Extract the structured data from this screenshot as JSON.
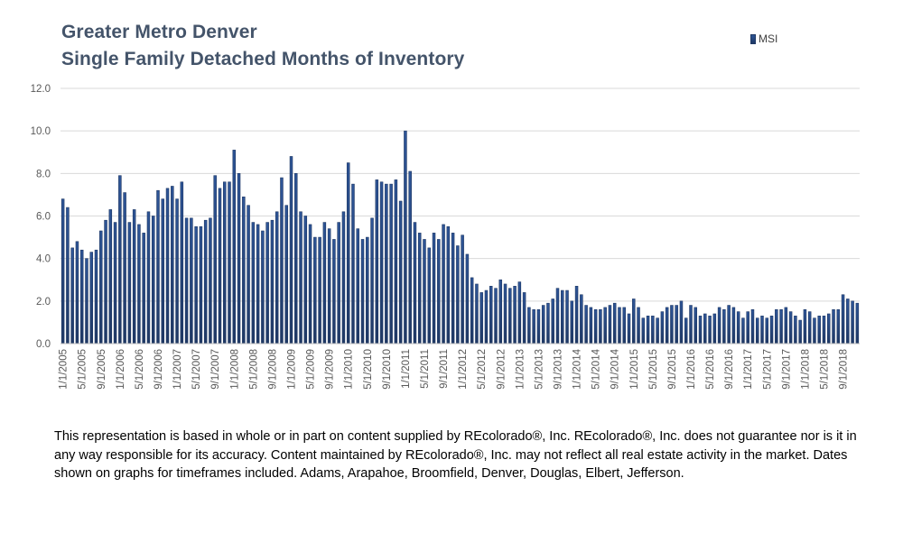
{
  "title_line1": "Greater Metro Denver",
  "title_line2": "Single Family Detached Months of Inventory",
  "legend_label": "MSI",
  "disclaimer": "This representation is based in whole or in part on content supplied by REcolorado®, Inc. REcolorado®, Inc. does not guarantee nor is it in any way responsible for its accuracy. Content maintained by REcolorado®, Inc. may not reflect all real estate activity in the market. Dates shown on graphs for timeframes included.  Adams, Arapahoe, Broomfield, Denver, Douglas, Elbert, Jefferson.",
  "colors": {
    "title": "#44546a",
    "bar_fill_top": "#2e5597",
    "bar_fill_bottom": "#1f3864",
    "bar_stroke": "#1f3864",
    "grid": "#d9d9d9",
    "axis_text": "#595959"
  },
  "chart_data": {
    "type": "bar",
    "series": [
      {
        "name": "MSI"
      }
    ],
    "y_ticks": [
      "0.0",
      "2.0",
      "4.0",
      "6.0",
      "8.0",
      "10.0",
      "12.0"
    ],
    "ylim": [
      0,
      12
    ],
    "grid": true,
    "legend_position": "top-right",
    "x_tick_labels": [
      "1/1/2005",
      "5/1/2005",
      "9/1/2005",
      "1/1/2006",
      "5/1/2006",
      "9/1/2006",
      "1/1/2007",
      "5/1/2007",
      "9/1/2007",
      "1/1/2008",
      "5/1/2008",
      "9/1/2008",
      "1/1/2009",
      "5/1/2009",
      "9/1/2009",
      "1/1/2010",
      "5/1/2010",
      "9/1/2010",
      "1/1/2011",
      "5/1/2011",
      "9/1/2011",
      "1/1/2012",
      "5/1/2012",
      "9/1/2012",
      "1/1/2013",
      "5/1/2013",
      "9/1/2013",
      "1/1/2014",
      "5/1/2014",
      "9/1/2014",
      "1/1/2015",
      "5/1/2015",
      "9/1/2015",
      "1/1/2016",
      "5/1/2016",
      "9/1/2016",
      "1/1/2017",
      "5/1/2017",
      "9/1/2017",
      "1/1/2018",
      "5/1/2018",
      "9/1/2018"
    ],
    "values": [
      6.8,
      6.4,
      4.5,
      4.8,
      4.4,
      4.0,
      4.3,
      4.4,
      5.3,
      5.8,
      6.3,
      5.7,
      7.9,
      7.1,
      5.7,
      6.3,
      5.6,
      5.2,
      6.2,
      6.0,
      7.2,
      6.8,
      7.3,
      7.4,
      6.8,
      7.6,
      5.9,
      5.9,
      5.5,
      5.5,
      5.8,
      5.9,
      7.9,
      7.3,
      7.6,
      7.6,
      9.1,
      8.0,
      6.9,
      6.5,
      5.7,
      5.6,
      5.3,
      5.7,
      5.8,
      6.2,
      7.8,
      6.5,
      8.8,
      8.0,
      6.2,
      6.0,
      5.6,
      5.0,
      5.0,
      5.7,
      5.4,
      4.9,
      5.7,
      6.2,
      8.5,
      7.5,
      5.4,
      4.9,
      5.0,
      5.9,
      7.7,
      7.6,
      7.5,
      7.5,
      7.7,
      6.7,
      10.0,
      8.1,
      5.7,
      5.2,
      4.9,
      4.5,
      5.2,
      4.9,
      5.6,
      5.5,
      5.2,
      4.6,
      5.1,
      4.2,
      3.1,
      2.8,
      2.4,
      2.5,
      2.7,
      2.6,
      3.0,
      2.8,
      2.6,
      2.7,
      2.9,
      2.4,
      1.7,
      1.6,
      1.6,
      1.8,
      1.9,
      2.1,
      2.6,
      2.5,
      2.5,
      2.0,
      2.7,
      2.3,
      1.8,
      1.7,
      1.6,
      1.6,
      1.7,
      1.8,
      1.9,
      1.7,
      1.7,
      1.4,
      2.1,
      1.7,
      1.2,
      1.3,
      1.3,
      1.2,
      1.5,
      1.7,
      1.8,
      1.8,
      2.0,
      1.2,
      1.8,
      1.7,
      1.3,
      1.4,
      1.3,
      1.4,
      1.7,
      1.6,
      1.8,
      1.7,
      1.5,
      1.2,
      1.5,
      1.6,
      1.2,
      1.3,
      1.2,
      1.3,
      1.6,
      1.6,
      1.7,
      1.5,
      1.3,
      1.1,
      1.6,
      1.5,
      1.2,
      1.3,
      1.3,
      1.4,
      1.6,
      1.6,
      2.3,
      2.1,
      2.0,
      1.9
    ]
  }
}
